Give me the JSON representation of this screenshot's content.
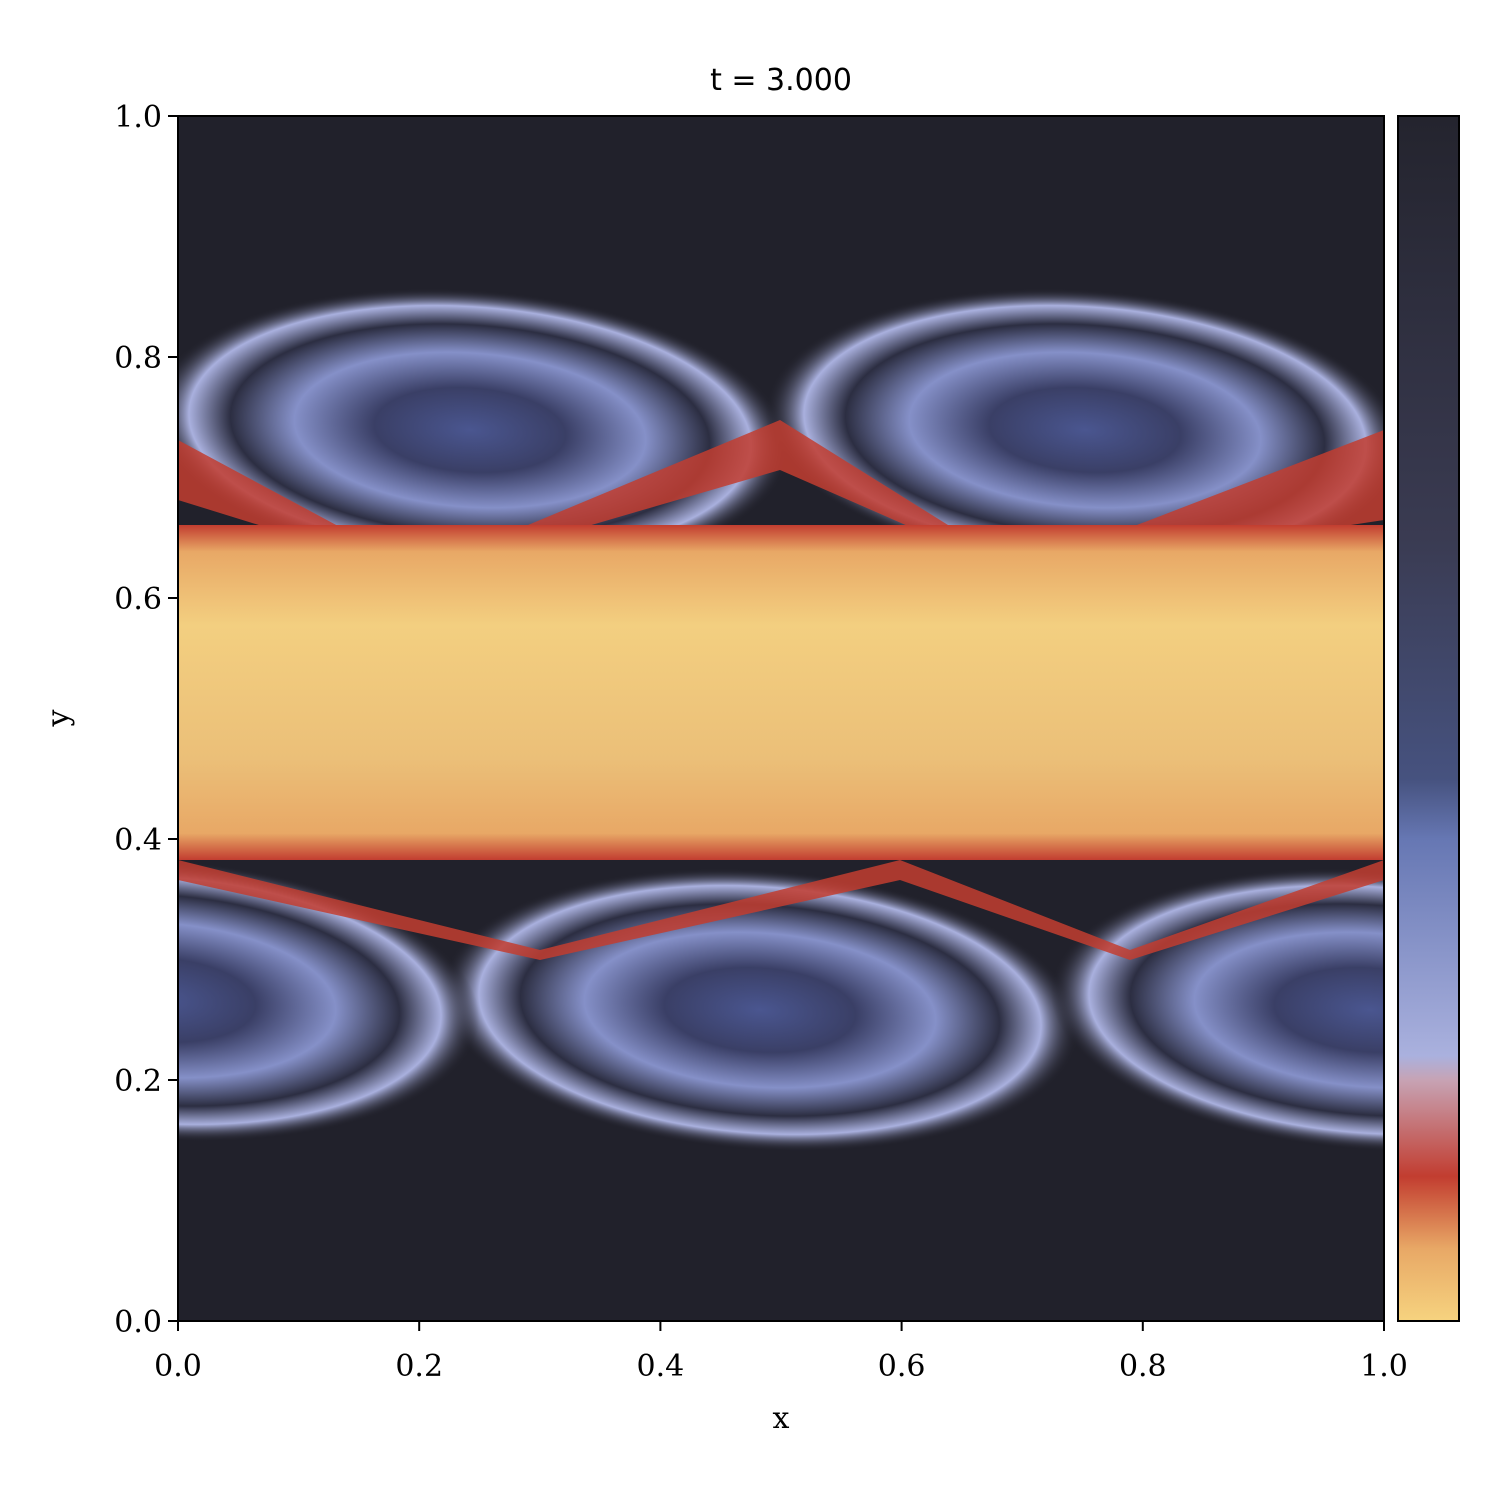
{
  "chart_data": {
    "type": "heatmap",
    "title": "t = 3.000",
    "xlabel": "x",
    "ylabel": "y",
    "xlim": [
      0,
      1
    ],
    "ylim": [
      0,
      1
    ],
    "xticks": [
      {
        "value": 0,
        "label": "0.0"
      },
      0.2,
      0.4,
      0.6,
      0.8,
      {
        "value": 1,
        "label": "1.0"
      }
    ],
    "yticks": [
      {
        "value": 0,
        "label": "0.0"
      },
      0.2,
      0.4,
      0.6,
      0.8,
      {
        "value": 1,
        "label": "1.0"
      }
    ],
    "colormap": [
      "#f6d37f",
      "#e8a866",
      "#c23d30",
      "#c7a3b4",
      "#aab1de",
      "#6677b3",
      "#46527f",
      "#3a3b52",
      "#24242e"
    ]
  }
}
